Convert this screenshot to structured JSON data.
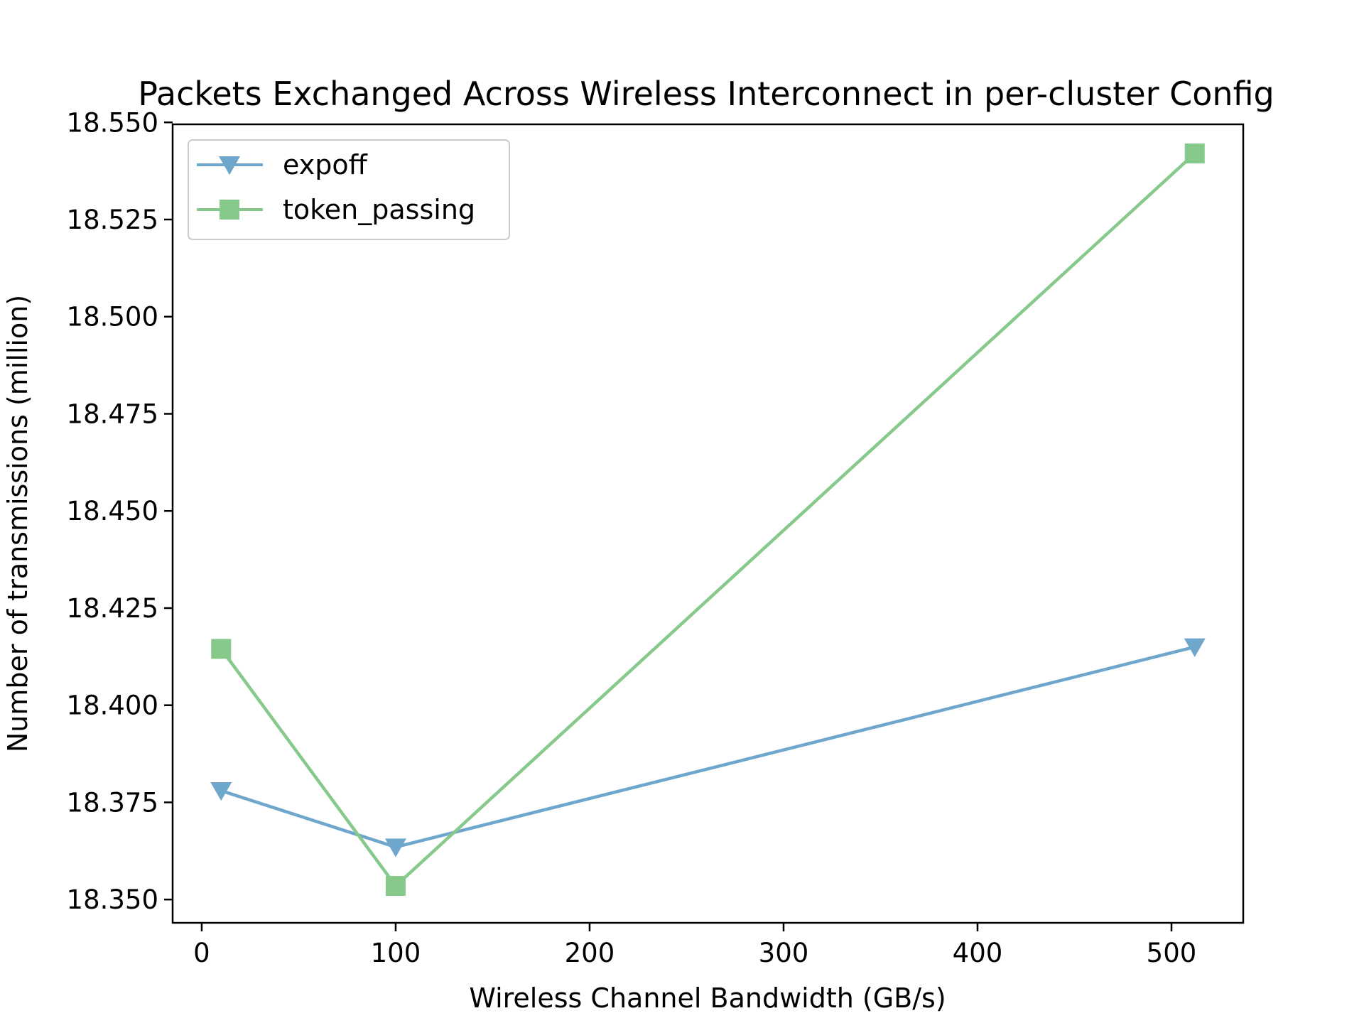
{
  "chart_data": {
    "type": "line",
    "title": "Packets Exchanged Across Wireless Interconnect in per-cluster Config",
    "xlabel": "Wireless Channel Bandwidth (GB/s)",
    "ylabel": "Number of transmissions (million)",
    "xlim": [
      -15,
      537
    ],
    "ylim": [
      18.344,
      18.5495
    ],
    "xticks": [
      0,
      100,
      200,
      300,
      400,
      500
    ],
    "xtick_labels": [
      "0",
      "100",
      "200",
      "300",
      "400",
      "500"
    ],
    "yticks": [
      18.35,
      18.375,
      18.4,
      18.425,
      18.45,
      18.475,
      18.5,
      18.525,
      18.55
    ],
    "ytick_labels": [
      "18.350",
      "18.375",
      "18.400",
      "18.425",
      "18.450",
      "18.475",
      "18.500",
      "18.525",
      "18.550"
    ],
    "grid": false,
    "legend_position": "top-left",
    "x": [
      10,
      100,
      512
    ],
    "series": [
      {
        "name": "expoff",
        "values": [
          18.378,
          18.3635,
          18.415
        ],
        "color": "#6ea6cc",
        "marker": "triangle-down"
      },
      {
        "name": "token_passing",
        "values": [
          18.4145,
          18.3535,
          18.542
        ],
        "color": "#86c98a",
        "marker": "square"
      }
    ]
  }
}
